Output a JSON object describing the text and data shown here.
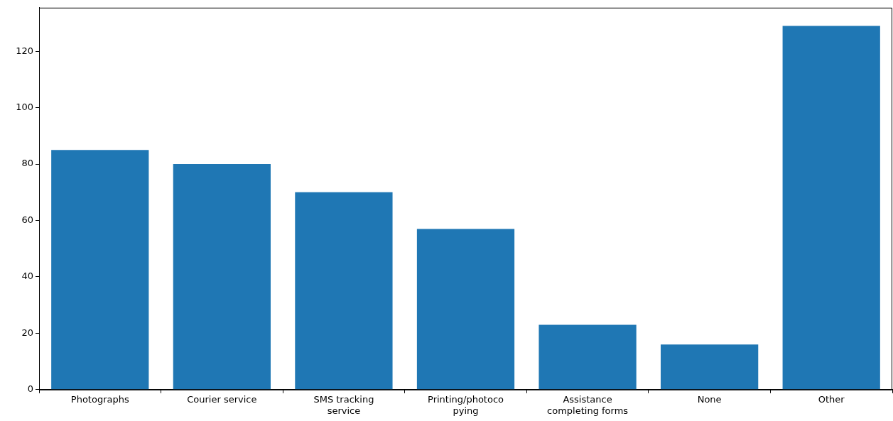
{
  "chart_data": {
    "type": "bar",
    "categories": [
      "Photographs",
      "Courier service",
      "SMS tracking service",
      "Printing/photocopying",
      "Assistance completing forms",
      "None",
      "Other"
    ],
    "values": [
      85,
      80,
      70,
      57,
      23,
      16,
      129
    ],
    "color": "#1f77b4",
    "ylim": [
      0,
      135.45
    ],
    "yticks": [
      0,
      20,
      40,
      60,
      80,
      100,
      120
    ],
    "grid": false,
    "legend": false
  }
}
